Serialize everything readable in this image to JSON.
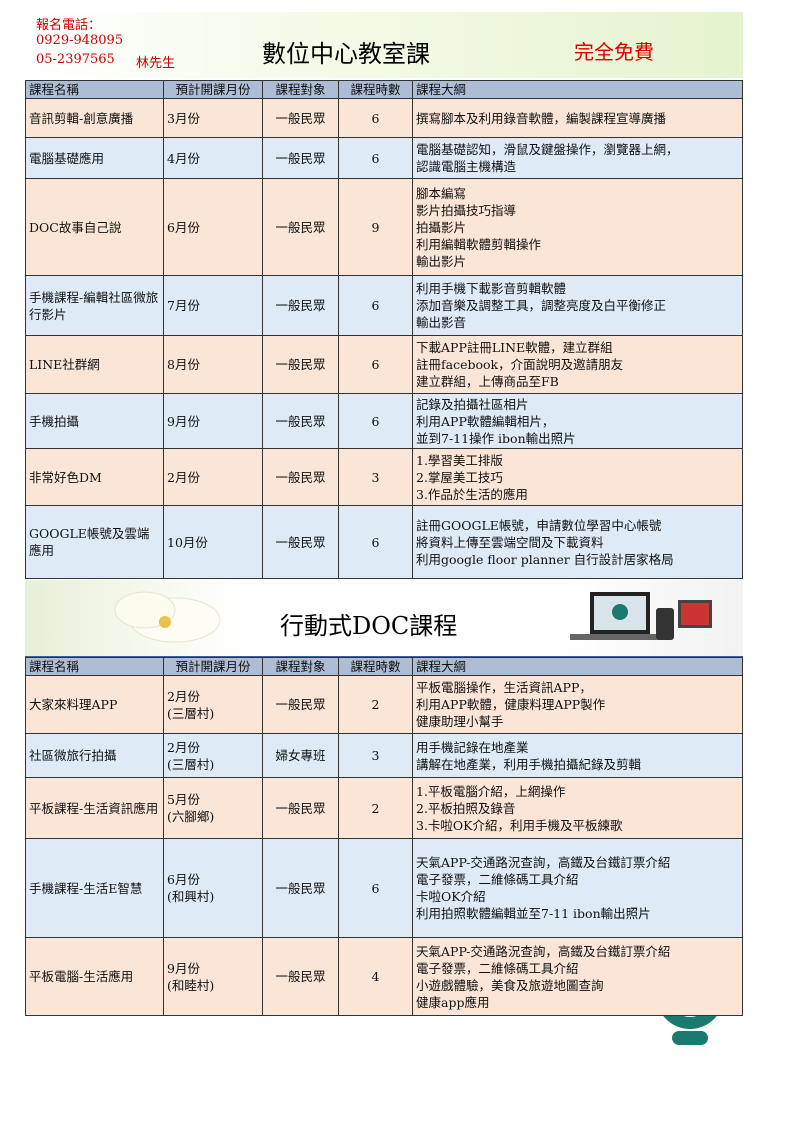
{
  "header": {
    "contact_label": "報名電話：",
    "phone1": "0929-948095",
    "phone2": "05-2397565",
    "contact_person": "林先生",
    "title": "數位中心教室課",
    "free": "完全免費"
  },
  "table1": {
    "columns": [
      "課程名稱",
      "預計開課月份",
      "課程對象",
      "課程時數",
      "課程大綱"
    ],
    "rows": [
      [
        "音訊剪輯-創意廣播",
        [
          "3月份"
        ],
        "一般民眾",
        6,
        [
          "撰寫腳本及利用錄音軟體，編製課程宣導廣播"
        ]
      ],
      [
        "電腦基礎應用",
        [
          "4月份"
        ],
        "一般民眾",
        6,
        [
          "電腦基礎認知，滑鼠及鍵盤操作，瀏覽器上網，",
          "認識電腦主機構造"
        ]
      ],
      [
        "DOC故事自己說",
        [
          "6月份"
        ],
        "一般民眾",
        9,
        [
          "腳本編寫",
          "影片拍攝技巧指導",
          "拍攝影片",
          "利用編輯軟體剪輯操作",
          "輸出影片"
        ]
      ],
      [
        "手機課程-編輯社區微旅行影片",
        [
          "7月份"
        ],
        "一般民眾",
        6,
        [
          "利用手機下載影音剪輯軟體",
          "添加音樂及調整工具，調整亮度及白平衡修正",
          "輸出影音"
        ]
      ],
      [
        "LINE社群網",
        [
          "8月份"
        ],
        "一般民眾",
        6,
        [
          "下載APP註冊LINE軟體，建立群組",
          "註冊facebook，介面說明及邀請朋友",
          "建立群組，上傳商品至FB"
        ]
      ],
      [
        "手機拍攝",
        [
          "9月份"
        ],
        "一般民眾",
        6,
        [
          "記錄及拍攝社區相片",
          "利用APP軟體編輯相片，",
          "並到7-11操作 ibon輸出照片"
        ]
      ],
      [
        "非常好色DM",
        [
          "2月份"
        ],
        "一般民眾",
        3,
        [
          "1.學習美工排版",
          "2.掌屋美工技巧",
          "3.作品於生活的應用"
        ]
      ],
      [
        "GOOGLE帳號及雲端應用",
        [
          "10月份"
        ],
        "一般民眾",
        6,
        [
          "註冊GOOGLE帳號，申請數位學習中心帳號",
          "將資料上傳至雲端空間及下載資料",
          "利用google floor planner 自行設計居家格局"
        ]
      ]
    ]
  },
  "section2": {
    "title": "行動式DOC課程"
  },
  "table2": {
    "columns": [
      "課程名稱",
      "預計開課月份",
      "課程對象",
      "課程時數",
      "課程大綱"
    ],
    "rows": [
      [
        "大家來料理APP",
        [
          "2月份",
          "(三層村)"
        ],
        "一般民眾",
        2,
        [
          "平板電腦操作，生活資訊APP，",
          "利用APP軟體，健康料理APP製作",
          "健康助理小幫手"
        ]
      ],
      [
        "社區微旅行拍攝",
        [
          "2月份",
          "(三層村)"
        ],
        "婦女專班",
        3,
        [
          "用手機記錄在地產業",
          "講解在地產業，利用手機拍攝紀錄及剪輯"
        ]
      ],
      [
        "平板課程-生活資訊應用",
        [
          "5月份",
          "(六腳鄉)"
        ],
        "一般民眾",
        2,
        [
          "1.平板電腦介紹，上網操作",
          "2.平板拍照及錄音",
          "3.卡啦OK介紹，利用手機及平板練歌"
        ]
      ],
      [
        "手機課程-生活E智慧",
        [
          "6月份",
          "(和興村)"
        ],
        "一般民眾",
        6,
        [
          "天氣APP-交通路況查詢，高鐵及台鐵訂票介紹",
          "電子發票，二維條碼工具介紹",
          "卡啦OK介紹",
          "利用拍照軟體編輯並至7-11 ibon輸出照片"
        ]
      ],
      [
        "平板電腦-生活應用",
        [
          "9月份",
          "(和睦村)"
        ],
        "一般民眾",
        4,
        [
          "天氣APP-交通路況查詢，高鐵及台鐵訂票介紹",
          "電子發票，二維條碼工具介紹",
          "小遊戲體驗，美食及旅遊地圖查詢",
          "健康app應用"
        ]
      ]
    ]
  }
}
